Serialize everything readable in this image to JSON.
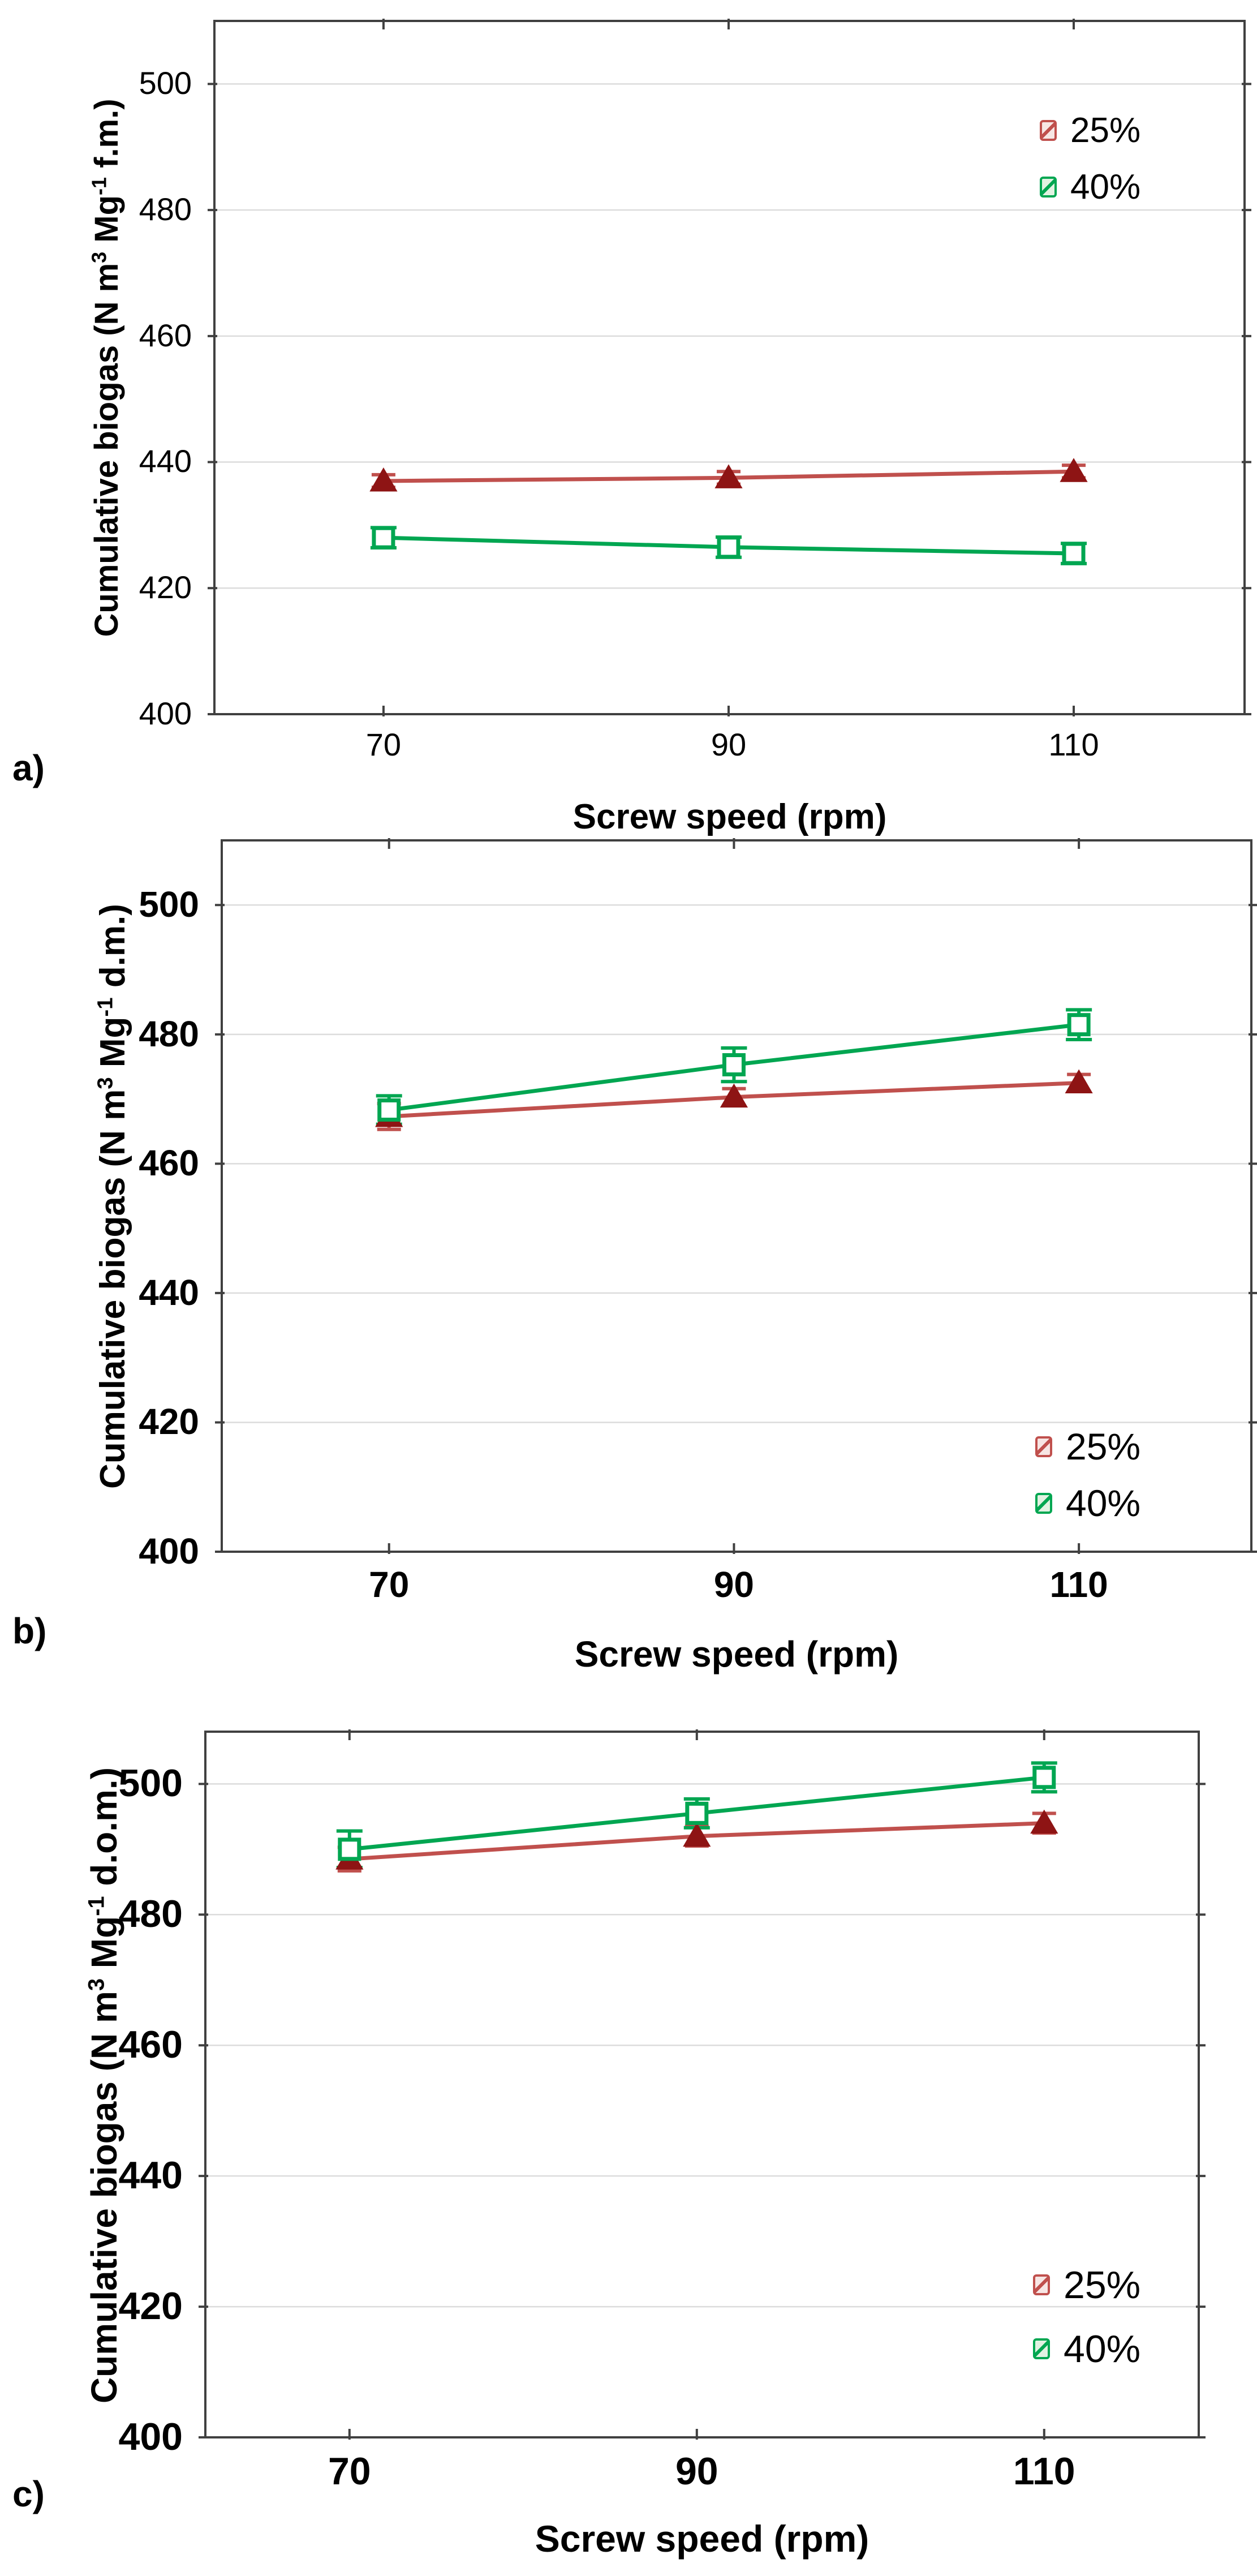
{
  "figure": {
    "background": "#ffffff",
    "axis_color": "#404040",
    "gridline_color": "#dcdcdc"
  },
  "chart_data": [
    {
      "type": "line",
      "panel": "a)",
      "title": "",
      "xlabel": "Screw speed (rpm)",
      "ylabel": "Cumulative biogas (N m3 Mg-1 f.m.)",
      "ylabel_parts": {
        "pre": "Cumulative biogas (N m",
        "sup1": "3",
        "mid": " Mg",
        "sup2": "-1",
        "post": " f.m.)"
      },
      "x": [
        70,
        90,
        110
      ],
      "xticks": [
        70,
        90,
        110
      ],
      "yticks": [
        400,
        420,
        440,
        460,
        480,
        500
      ],
      "xlim": [
        60.2,
        119.9
      ],
      "ylim": [
        400,
        510
      ],
      "grid": true,
      "legend_position": "top-right",
      "series": [
        {
          "name": "25%",
          "marker": "filled-triangle",
          "line_color": "#c0504d",
          "marker_color": "#8e1414",
          "values": [
            437.0,
            437.5,
            438.5
          ],
          "errors": [
            1.0,
            1.0,
            1.0
          ]
        },
        {
          "name": "40%",
          "marker": "open-square",
          "line_color": "#00a651",
          "marker_color": "#00a651",
          "values": [
            428.0,
            426.5,
            425.5
          ],
          "errors": [
            1.6,
            1.6,
            1.6
          ]
        }
      ]
    },
    {
      "type": "line",
      "panel": "b)",
      "title": "",
      "xlabel": "Screw speed (rpm)",
      "ylabel": "Cumulative biogas (N m3 Mg-1 d.m.)",
      "ylabel_parts": {
        "pre": "Cumulative biogas (N m",
        "sup1": "3",
        "mid": " Mg",
        "sup2": "-1",
        "post": " d.m.)"
      },
      "x": [
        70,
        90,
        110
      ],
      "xticks": [
        70,
        90,
        110
      ],
      "yticks": [
        400,
        420,
        440,
        460,
        480,
        500
      ],
      "xlim": [
        60.3,
        120.0
      ],
      "ylim": [
        400,
        510
      ],
      "grid": true,
      "legend_position": "bottom-right",
      "series": [
        {
          "name": "25%",
          "marker": "filled-triangle",
          "line_color": "#c0504d",
          "marker_color": "#8e1414",
          "values": [
            467.3,
            470.3,
            472.5
          ],
          "errors": [
            2.0,
            1.3,
            1.3
          ]
        },
        {
          "name": "40%",
          "marker": "open-square",
          "line_color": "#00a651",
          "marker_color": "#00a651",
          "values": [
            468.3,
            475.3,
            481.5
          ],
          "errors": [
            2.2,
            2.6,
            2.3
          ]
        }
      ]
    },
    {
      "type": "line",
      "panel": "c)",
      "title": "",
      "xlabel": "Screw speed (rpm)",
      "ylabel": "Cumulative biogas (N m3 Mg-1 d.o.m.)",
      "ylabel_parts": {
        "pre": "Cumulative biogas (N m",
        "sup1": "3",
        "mid": " Mg",
        "sup2": "-1",
        "post": " d.o.m.)"
      },
      "x": [
        70,
        90,
        110
      ],
      "xticks": [
        70,
        90,
        110
      ],
      "yticks": [
        400,
        420,
        440,
        460,
        480,
        500
      ],
      "xlim": [
        61.7,
        118.9
      ],
      "ylim": [
        400,
        508
      ],
      "grid": true,
      "legend_position": "bottom-right",
      "series": [
        {
          "name": "25%",
          "marker": "filled-triangle",
          "line_color": "#c0504d",
          "marker_color": "#8e1414",
          "values": [
            488.5,
            492.0,
            494.0
          ],
          "errors": [
            1.8,
            1.5,
            1.5
          ]
        },
        {
          "name": "40%",
          "marker": "open-square",
          "line_color": "#00a651",
          "marker_color": "#00a651",
          "values": [
            490.0,
            495.5,
            501.0
          ],
          "errors": [
            2.8,
            2.2,
            2.2
          ]
        }
      ]
    }
  ]
}
